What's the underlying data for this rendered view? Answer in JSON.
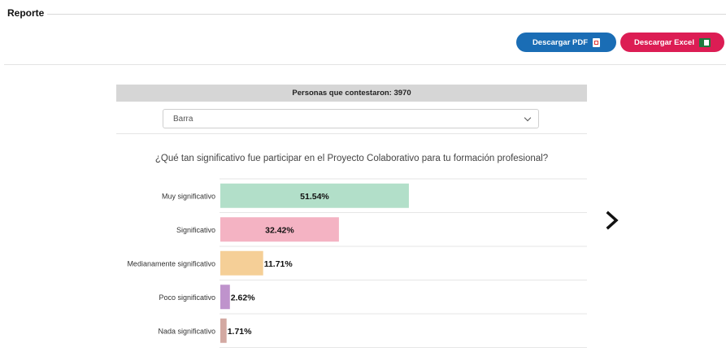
{
  "header": {
    "title": "Reporte"
  },
  "toolbar": {
    "pdf_label": "Descargar PDF",
    "excel_label": "Descargar Excel",
    "pdf_color": "#1a6db5",
    "excel_color": "#dc1d54"
  },
  "survey": {
    "respondents_text": "Personas que contestaron: 3970",
    "chart_type_selected": "Barra",
    "question": "¿Qué tan significativo fue participar en el Proyecto Colaborativo para tu formación profesional?"
  },
  "chart_data": {
    "type": "bar",
    "orientation": "horizontal",
    "categories": [
      "Muy significativo",
      "Significativo",
      "Medianamente significativo",
      "Poco significativo",
      "Nada significativo"
    ],
    "values": [
      51.54,
      32.42,
      11.71,
      2.62,
      1.71
    ],
    "value_labels": [
      "51.54%",
      "32.42%",
      "11.71%",
      "2.62%",
      "1.71%"
    ],
    "colors": [
      "#b2dfc9",
      "#f4b3c3",
      "#f5cf97",
      "#bf93cc",
      "#d3a9a2"
    ],
    "xlim": [
      0,
      100
    ],
    "grid": true
  },
  "icons": {
    "pdf": "pdf-file-icon",
    "excel": "excel-file-icon",
    "select": "chevron-down-icon",
    "next": "chevron-right-icon"
  }
}
